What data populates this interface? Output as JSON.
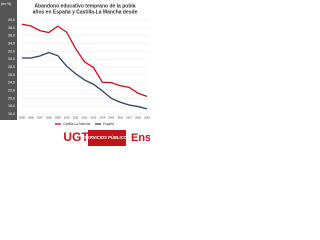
{
  "chart_data": {
    "type": "line",
    "title": "Abandono educativo temprano de la pobla",
    "subtitle": "años en España y Castilla-La Mancha desde",
    "y_label": "(en %)",
    "categories": [
      "2005",
      "2006",
      "2007",
      "2008",
      "2009",
      "2010",
      "2011",
      "2012",
      "2013",
      "2014",
      "2015",
      "2016",
      "2017",
      "2018",
      "2019"
    ],
    "series": [
      {
        "name": "Castilla-La Mancha",
        "color": "#c0141c",
        "values": [
          38.9,
          38.5,
          37.3,
          36.8,
          38.4,
          36.9,
          32.7,
          29.3,
          27.9,
          24.1,
          24.0,
          23.2,
          22.8,
          21.3,
          20.5
        ]
      },
      {
        "name": "España",
        "color": "#2f3f63",
        "values": [
          30.3,
          30.3,
          30.8,
          31.7,
          30.9,
          28.2,
          26.3,
          24.7,
          23.6,
          21.9,
          20.0,
          19.0,
          18.3,
          17.9,
          17.3
        ]
      }
    ],
    "ylim": [
      16,
      40
    ],
    "yticks": [
      {
        "value": 40,
        "label": "40,0"
      },
      {
        "value": 38,
        "label": "38,0"
      },
      {
        "value": 36,
        "label": "36,0"
      },
      {
        "value": 34,
        "label": "34,0"
      },
      {
        "value": 32,
        "label": "32,0"
      },
      {
        "value": 30,
        "label": "30,0"
      },
      {
        "value": 28,
        "label": "28,0"
      },
      {
        "value": 26,
        "label": "26,0"
      },
      {
        "value": 24,
        "label": "24,0"
      },
      {
        "value": 22,
        "label": "22,0"
      },
      {
        "value": 20,
        "label": "20,0"
      },
      {
        "value": 18,
        "label": "18,0"
      },
      {
        "value": 16,
        "label": "16,0"
      }
    ],
    "grid": true,
    "footer": {
      "logo": "UGT",
      "union": "SERVICIOS PÚBLICOS",
      "sector": "Ense"
    }
  }
}
